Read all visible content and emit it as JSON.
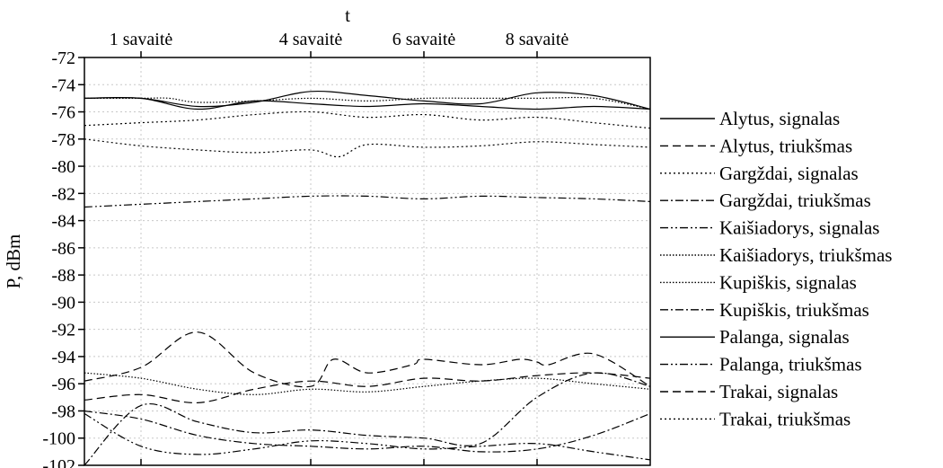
{
  "chart_data": {
    "type": "line",
    "title": "",
    "xlabel": "t",
    "ylabel": "P, dBm",
    "ylim": [
      -102,
      -72
    ],
    "xlim": [
      0,
      10
    ],
    "y_ticks": [
      -72,
      -74,
      -76,
      -78,
      -80,
      -82,
      -84,
      -86,
      -88,
      -90,
      -92,
      -94,
      -96,
      -98,
      -100,
      -102
    ],
    "x_ticks": [
      1,
      4,
      6,
      8
    ],
    "x_tick_labels": [
      "1 savaitė",
      "4 savaitė",
      "6 savaitė",
      "8 savaitė"
    ],
    "grid": true,
    "legend_position": "right",
    "series": [
      {
        "name": "Alytus, signalas",
        "dash": "solid",
        "color": "#000000",
        "x": [
          0,
          1,
          2,
          3,
          4,
          5,
          6,
          7,
          8,
          9,
          10
        ],
        "y": [
          -75,
          -75,
          -75.6,
          -75.3,
          -74.5,
          -74.8,
          -75.2,
          -75.4,
          -74.6,
          -74.8,
          -75.8
        ]
      },
      {
        "name": "Alytus, triukšmas",
        "dash": "dash",
        "color": "#000000",
        "x": [
          0,
          1,
          2,
          3,
          4,
          5,
          6,
          7,
          8,
          9,
          10
        ],
        "y": [
          -97.2,
          -96.8,
          -97.4,
          -96.4,
          -95.8,
          -96.2,
          -95.6,
          -95.8,
          -95.4,
          -95.2,
          -95.6
        ]
      },
      {
        "name": "Gargždai, signalas",
        "dash": "dot",
        "color": "#000000",
        "x": [
          0,
          1,
          2,
          3,
          4,
          4.5,
          5,
          6,
          7,
          8,
          9,
          10
        ],
        "y": [
          -78,
          -78.5,
          -78.8,
          -79,
          -78.8,
          -79.3,
          -78.4,
          -78.6,
          -78.5,
          -78.2,
          -78.4,
          -78.6
        ]
      },
      {
        "name": "Gargždai, triukšmas",
        "dash": "dashdot",
        "color": "#000000",
        "x": [
          0,
          1,
          2,
          3,
          4,
          5,
          6,
          7,
          8,
          9,
          10
        ],
        "y": [
          -98,
          -98.6,
          -99.8,
          -100.4,
          -100.6,
          -100.8,
          -100.6,
          -101,
          -100.8,
          -99.8,
          -98.2
        ]
      },
      {
        "name": "Kaišiadorys, signalas",
        "dash": "dashdotdot",
        "color": "#000000",
        "x": [
          0,
          1,
          2,
          3,
          4,
          5,
          6,
          7,
          8,
          9,
          10
        ],
        "y": [
          -83,
          -82.8,
          -82.6,
          -82.4,
          -82.2,
          -82.2,
          -82.4,
          -82.2,
          -82.3,
          -82.4,
          -82.6
        ]
      },
      {
        "name": "Kaišiadorys, triukšmas",
        "dash": "shortdot",
        "color": "#000000",
        "x": [
          0,
          1,
          2,
          3,
          4,
          5,
          6,
          7,
          8,
          9,
          10
        ],
        "y": [
          -95.2,
          -95.6,
          -96.4,
          -96.8,
          -96.4,
          -96.6,
          -96.2,
          -95.8,
          -95.6,
          -96,
          -96.4
        ]
      },
      {
        "name": "Kupiškis, signalas",
        "dash": "shortdot",
        "color": "#000000",
        "x": [
          0,
          1,
          1.5,
          2,
          3,
          4,
          5,
          6,
          7,
          8,
          9,
          10
        ],
        "y": [
          -75,
          -75,
          -75,
          -75.3,
          -75.2,
          -75,
          -75.2,
          -75,
          -75,
          -75,
          -75,
          -75.8
        ]
      },
      {
        "name": "Kupiškis, triukšmas",
        "dash": "dashdot",
        "color": "#000000",
        "x": [
          0,
          1,
          2,
          3,
          4,
          5,
          6,
          7,
          8,
          9,
          10
        ],
        "y": [
          -102,
          -97.6,
          -98.8,
          -99.6,
          -99.4,
          -99.8,
          -100,
          -100.4,
          -97,
          -95.2,
          -96.2
        ]
      },
      {
        "name": "Palanga, signalas",
        "dash": "solid",
        "color": "#000000",
        "x": [
          0,
          1,
          2,
          3,
          4,
          5,
          6,
          7,
          8,
          9,
          10
        ],
        "y": [
          -75,
          -75,
          -75.8,
          -75.2,
          -75.4,
          -75.6,
          -75.4,
          -75.6,
          -75.8,
          -75.6,
          -75.8
        ]
      },
      {
        "name": "Palanga, triukšmas",
        "dash": "dashdotdot",
        "color": "#000000",
        "x": [
          0,
          1,
          2,
          3,
          4,
          5,
          6,
          7,
          8,
          9,
          10
        ],
        "y": [
          -98.2,
          -100.6,
          -101.2,
          -100.8,
          -100.2,
          -100.4,
          -100.8,
          -100.6,
          -100.4,
          -101,
          -101.6
        ]
      },
      {
        "name": "Trakai, signalas",
        "dash": "dash",
        "color": "#000000",
        "x": [
          0,
          1,
          2,
          3,
          4,
          4.4,
          5,
          5.8,
          6,
          7,
          7.7,
          8,
          8.2,
          9,
          10
        ],
        "y": [
          -95.8,
          -94.8,
          -92.2,
          -95.2,
          -96.2,
          -94.2,
          -95.2,
          -94.6,
          -94.2,
          -94.6,
          -94.2,
          -94.4,
          -94.6,
          -93.8,
          -96.2
        ]
      },
      {
        "name": "Trakai, triukšmas",
        "dash": "dot",
        "color": "#000000",
        "x": [
          0,
          1,
          2,
          3,
          4,
          5,
          6,
          7,
          8,
          9,
          10
        ],
        "y": [
          -77,
          -76.8,
          -76.6,
          -76.2,
          -76,
          -76.4,
          -76.2,
          -76.6,
          -76.4,
          -76.8,
          -77.2
        ]
      }
    ]
  }
}
